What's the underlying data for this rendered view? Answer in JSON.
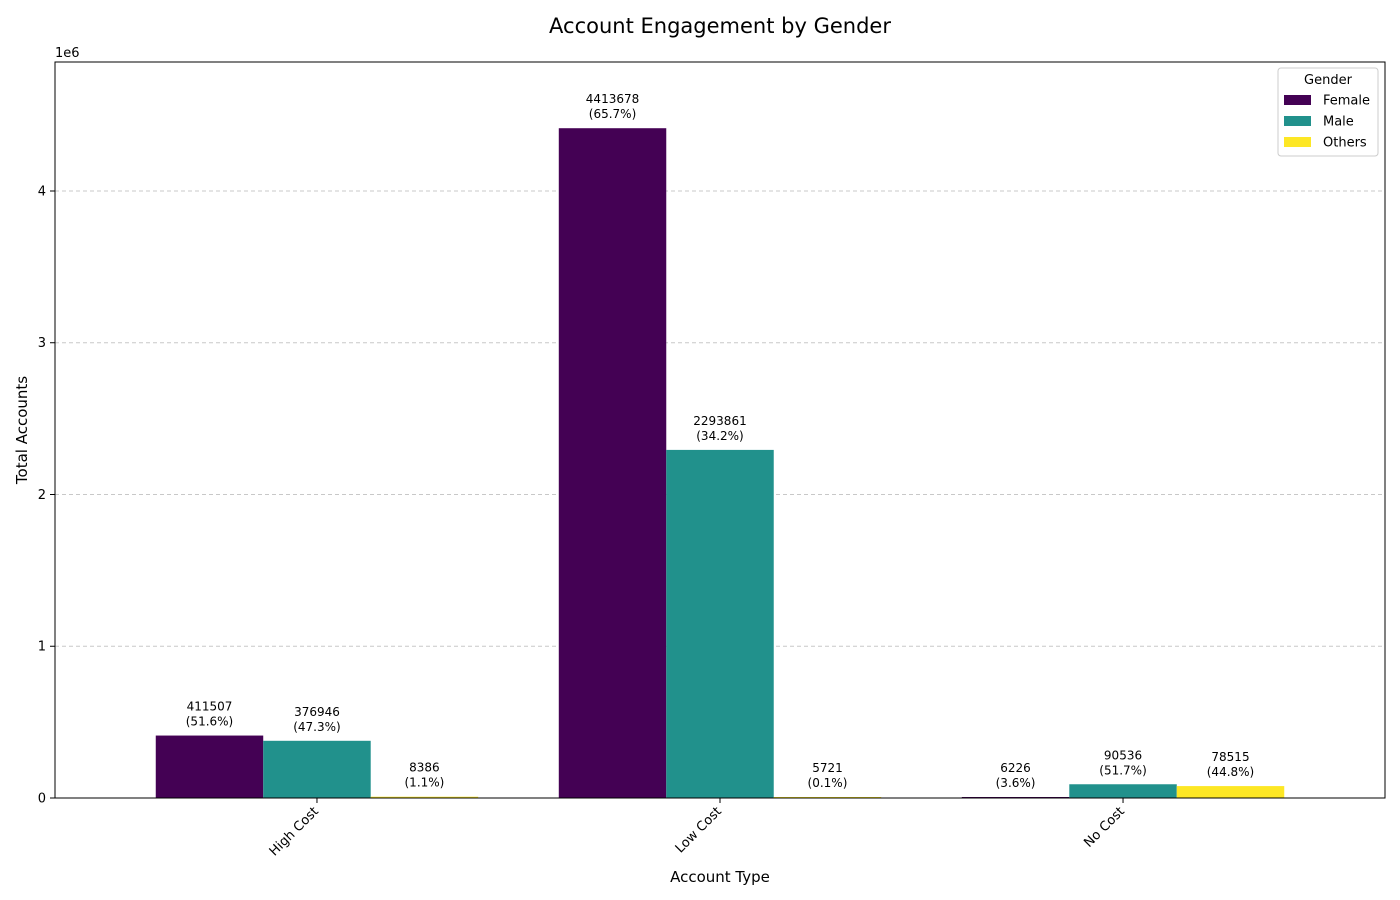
{
  "chart_data": {
    "type": "bar",
    "title": "Account Engagement by Gender",
    "xlabel": "Account Type",
    "ylabel": "Total Accounts",
    "y_offset_label": "1e6",
    "categories": [
      "High Cost",
      "Low Cost",
      "No Cost"
    ],
    "series": [
      {
        "name": "Female",
        "color": "#440154",
        "values": [
          411507,
          4413678,
          6226
        ],
        "percents": [
          "(51.6%)",
          "(65.7%)",
          "(3.6%)"
        ]
      },
      {
        "name": "Male",
        "color": "#21918c",
        "values": [
          376946,
          2293861,
          90536
        ],
        "percents": [
          "(47.3%)",
          "(34.2%)",
          "(51.7%)"
        ]
      },
      {
        "name": "Others",
        "color": "#fde725",
        "values": [
          8386,
          5721,
          78515
        ],
        "percents": [
          "(1.1%)",
          "(0.1%)",
          "(44.8%)"
        ]
      }
    ],
    "ylim": [
      0,
      4850000
    ],
    "yticks": [
      0,
      1000000,
      2000000,
      3000000,
      4000000
    ],
    "ytick_labels": [
      "0",
      "1",
      "2",
      "3",
      "4"
    ],
    "grid": "y-dashed",
    "legend": {
      "title": "Gender",
      "placement": "top-right"
    }
  }
}
